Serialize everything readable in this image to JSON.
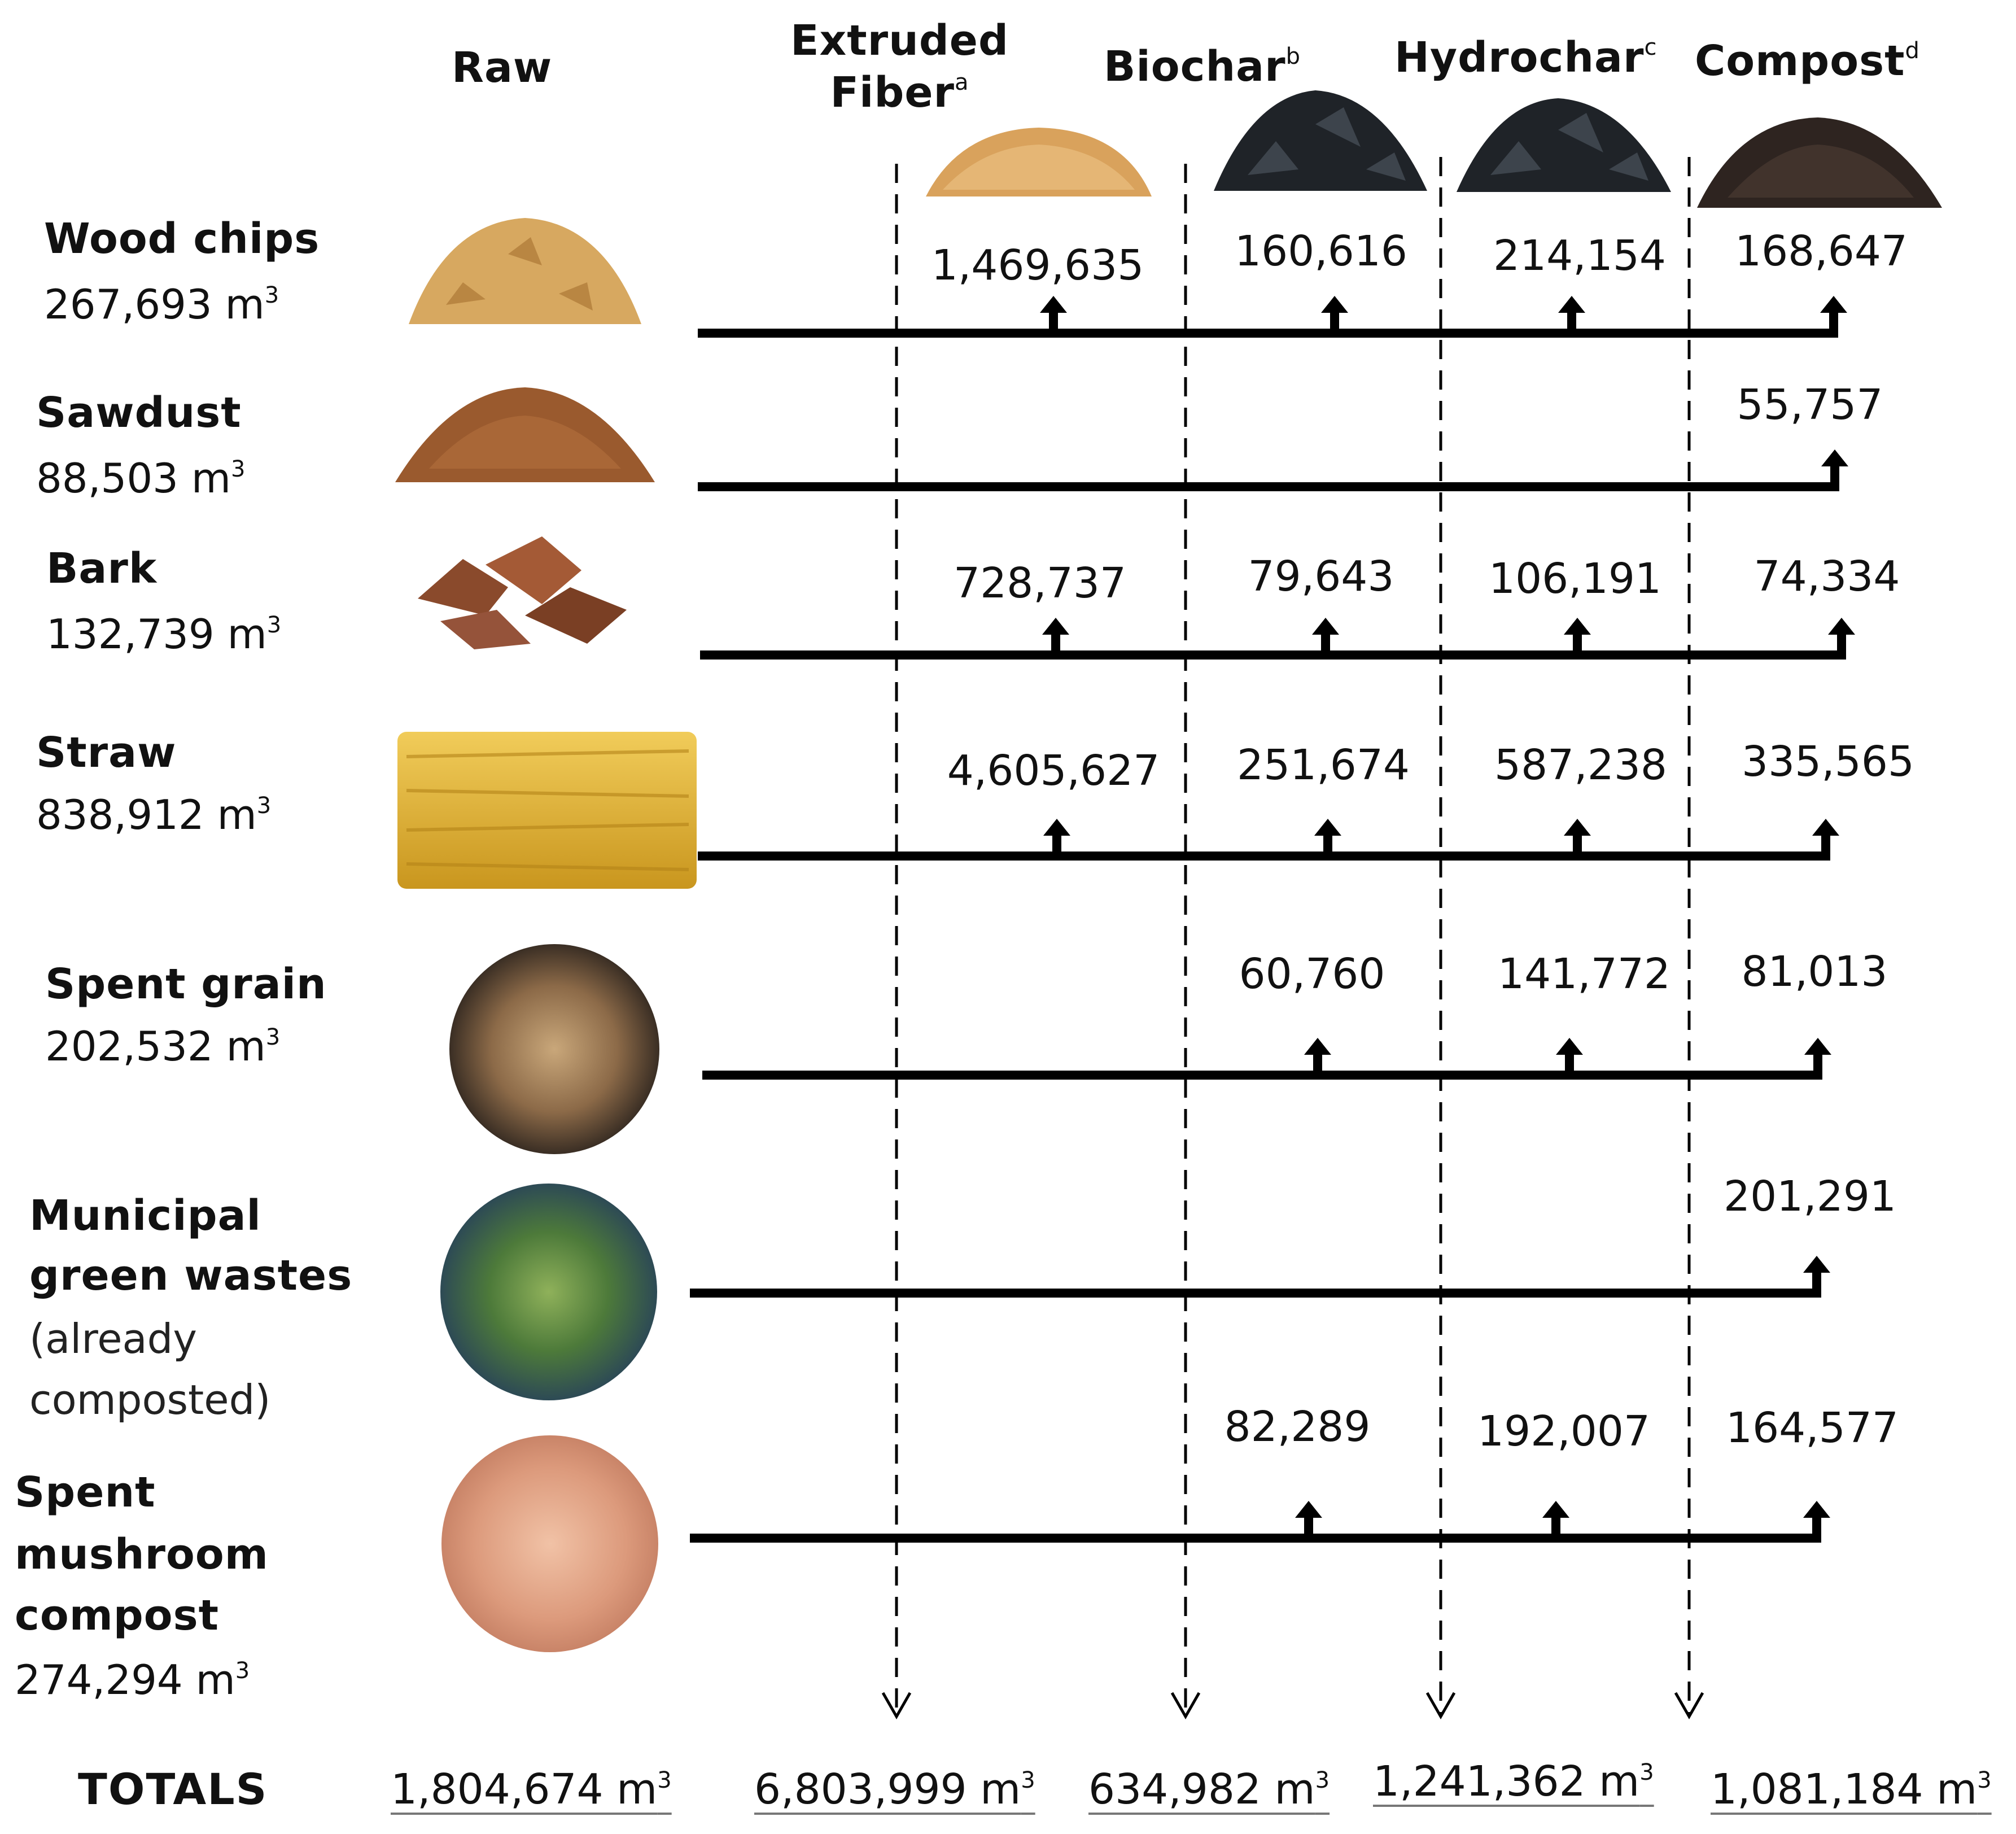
{
  "headers": {
    "raw": "Raw",
    "extruded_line1": "Extruded",
    "extruded_line2": "Fiber",
    "extruded_sup": "a",
    "biochar": "Biochar",
    "biochar_sup": "b",
    "hydrochar": "Hydrochar",
    "hydrochar_sup": "c",
    "compost": "Compost",
    "compost_sup": "d"
  },
  "unit_sup": "3",
  "rows": [
    {
      "name_lines": [
        "Wood chips"
      ],
      "note_lines": [],
      "volume": "267,693 m",
      "icon": "wood-chips-image",
      "values": {
        "extruded": "1,469,635",
        "biochar": "160,616",
        "hydrochar": "214,154",
        "compost": "168,647"
      }
    },
    {
      "name_lines": [
        "Sawdust"
      ],
      "note_lines": [],
      "volume": "88,503 m",
      "icon": "sawdust-image",
      "values": {
        "extruded": "",
        "biochar": "",
        "hydrochar": "",
        "compost": "55,757"
      }
    },
    {
      "name_lines": [
        "Bark"
      ],
      "note_lines": [],
      "volume": "132,739 m",
      "icon": "bark-image",
      "values": {
        "extruded": "728,737",
        "biochar": "79,643",
        "hydrochar": "106,191",
        "compost": "74,334"
      }
    },
    {
      "name_lines": [
        "Straw"
      ],
      "note_lines": [],
      "volume": "838,912 m",
      "icon": "straw-bale-image",
      "values": {
        "extruded": "4,605,627",
        "biochar": "251,674",
        "hydrochar": "587,238",
        "compost": "335,565"
      }
    },
    {
      "name_lines": [
        "Spent grain"
      ],
      "note_lines": [],
      "volume": "202,532 m",
      "icon": "spent-grain-image",
      "values": {
        "extruded": "",
        "biochar": "60,760",
        "hydrochar": "141,772",
        "compost": "81,013"
      }
    },
    {
      "name_lines": [
        "Municipal",
        "green wastes"
      ],
      "note_lines": [
        "(already",
        "composted)"
      ],
      "volume": "",
      "icon": "green-waste-image",
      "values": {
        "extruded": "",
        "biochar": "",
        "hydrochar": "",
        "compost": "201,291"
      }
    },
    {
      "name_lines": [
        "Spent",
        "mushroom",
        "compost"
      ],
      "note_lines": [],
      "volume": "274,294 m",
      "icon": "mushroom-compost-image",
      "values": {
        "extruded": "",
        "biochar": "82,289",
        "hydrochar": "192,007",
        "compost": "164,577"
      }
    }
  ],
  "totals": {
    "label": "TOTALS",
    "raw": "1,804,674 m",
    "extruded": "6,803,999 m",
    "biochar": "634,982 m",
    "hydrochar": "1,241,362 m",
    "compost": "1,081,184 m"
  },
  "colors": {
    "line": "#000000",
    "wood": "#d7a860",
    "sawdust": "#9a5a2e",
    "bark": "#8a4a2c",
    "straw": "#e2b43a",
    "fiber": "#d9a25c",
    "char": "#1f2328",
    "compost": "#2e2420"
  }
}
